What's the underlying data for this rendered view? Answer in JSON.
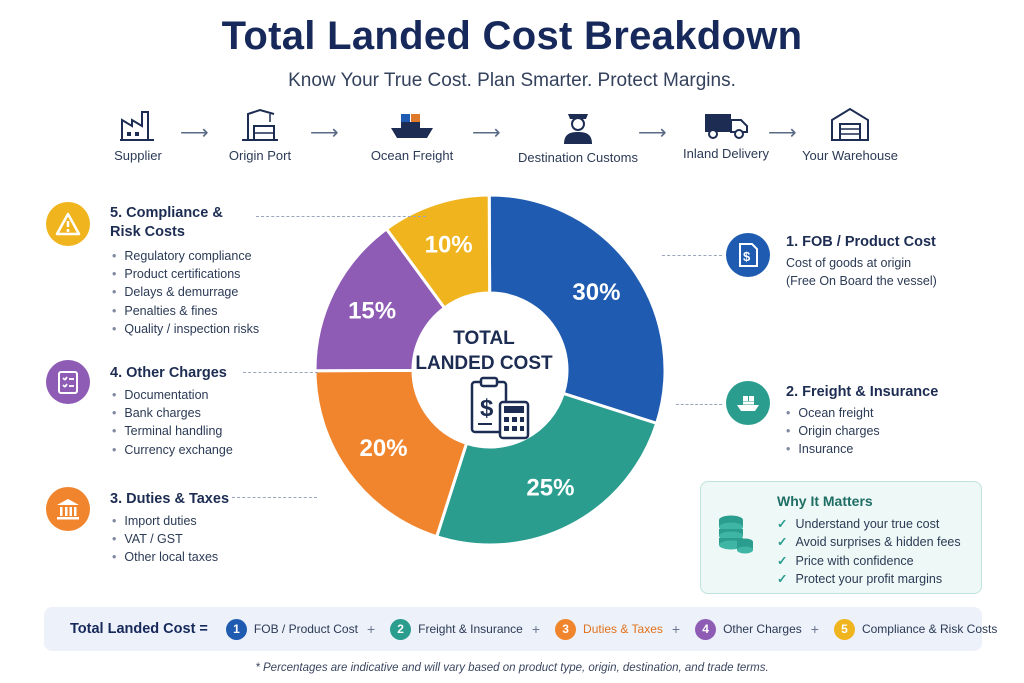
{
  "title": "Total Landed Cost Breakdown",
  "subtitle": "Know Your True Cost. Plan Smarter. Protect Margins.",
  "flow": [
    {
      "label": "Supplier",
      "icon": "factory-icon"
    },
    {
      "label": "Origin Port",
      "icon": "port-crane-icon"
    },
    {
      "label": "Ocean Freight",
      "icon": "cargo-ship-icon"
    },
    {
      "label": "Destination Customs",
      "icon": "customs-officer-icon"
    },
    {
      "label": "Inland Delivery",
      "icon": "truck-icon"
    },
    {
      "label": "Your Warehouse",
      "icon": "warehouse-icon"
    }
  ],
  "center": {
    "line1": "TOTAL",
    "line2": "LANDED COST"
  },
  "components": {
    "fob": {
      "number": "1",
      "title": "1. FOB / Product Cost",
      "desc1": "Cost of goods at origin",
      "desc2": "(Free On Board the vessel)",
      "color": "#1f5bb0",
      "icon": "invoice-dollar-icon"
    },
    "freight": {
      "number": "2",
      "title": "2. Freight & Insurance",
      "items": [
        "Ocean freight",
        "Origin charges",
        "Insurance"
      ],
      "color": "#2a9d8f",
      "icon": "ship-icon"
    },
    "duties": {
      "number": "3",
      "title": "3. Duties & Taxes",
      "items": [
        "Import duties",
        "VAT / GST",
        "Other local taxes"
      ],
      "color": "#f0852d",
      "icon": "government-building-icon"
    },
    "other": {
      "number": "4",
      "title": "4. Other Charges",
      "items": [
        "Documentation",
        "Bank charges",
        "Terminal handling",
        "Currency exchange"
      ],
      "color": "#8e5cb5",
      "icon": "checklist-icon"
    },
    "compliance": {
      "number": "5",
      "title_line1": "5. Compliance &",
      "title_line2": "Risk Costs",
      "items": [
        "Regulatory compliance",
        "Product certifications",
        "Delays & demurrage",
        "Penalties & fines",
        "Quality / inspection risks"
      ],
      "color": "#f0b41e",
      "icon": "warning-icon"
    }
  },
  "why": {
    "title": "Why It Matters",
    "items": [
      "Understand your true cost",
      "Avoid surprises & hidden fees",
      "Price with confidence",
      "Protect your profit margins"
    ],
    "icon": "coin-stack-icon"
  },
  "formula": {
    "label": "Total Landed Cost =",
    "icon": "lightbulb-icon",
    "terms": [
      {
        "num": "1",
        "text": "FOB / Product Cost",
        "color": "#1f5bb0",
        "text_color": "#2b3a55"
      },
      {
        "num": "2",
        "text": "Freight & Insurance",
        "color": "#2a9d8f",
        "text_color": "#2b3a55"
      },
      {
        "num": "3",
        "text": "Duties & Taxes",
        "color": "#f0852d",
        "text_color": "#e0731c"
      },
      {
        "num": "4",
        "text": "Other Charges",
        "color": "#8e5cb5",
        "text_color": "#2b3a55"
      },
      {
        "num": "5",
        "text": "Compliance & Risk Costs",
        "color": "#f0b41e",
        "text_color": "#2b3a55"
      }
    ],
    "plus": "+"
  },
  "footnote": "* Percentages are indicative and will vary based on product type, origin, destination, and trade terms.",
  "chart_data": {
    "type": "pie",
    "title": "",
    "categories": [
      "FOB / Product Cost",
      "Freight & Insurance",
      "Duties & Taxes",
      "Other Charges",
      "Compliance & Risk Costs"
    ],
    "values": [
      30,
      25,
      20,
      15,
      10
    ],
    "labels": [
      "30%",
      "25%",
      "20%",
      "15%",
      "10%"
    ],
    "colors": [
      "#1f5bb0",
      "#2a9d8f",
      "#f0852d",
      "#8e5cb5",
      "#f0b41e"
    ],
    "donut": true,
    "legend": "none"
  }
}
